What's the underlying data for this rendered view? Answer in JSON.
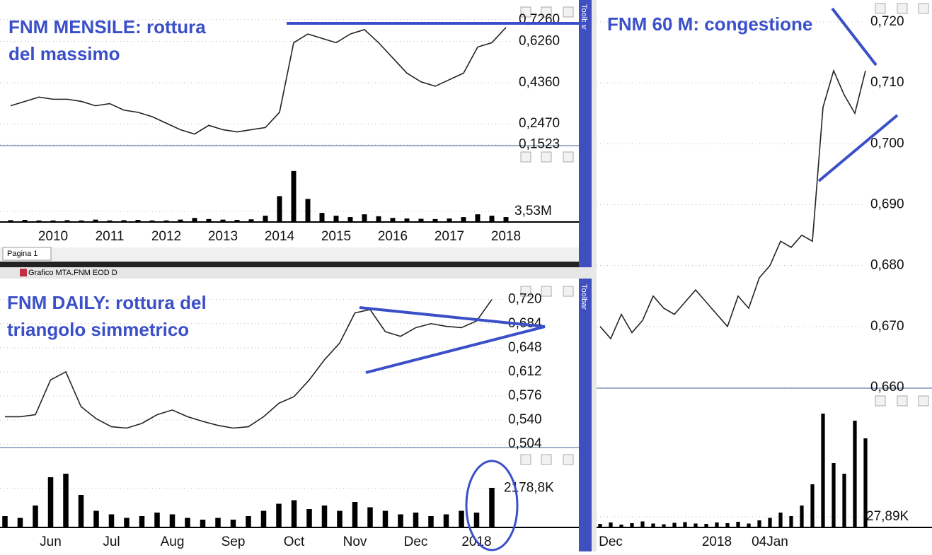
{
  "ui": {
    "tab": "Pagina 1",
    "window_title": "Grafico MTA.FNM EOD D",
    "toolbar": "Toolbar"
  },
  "chart_data": [
    {
      "type": "line",
      "title": [
        "FNM MENSILE: rottura",
        "del massimo"
      ],
      "color": "#222222",
      "categories": [
        null,
        null,
        null,
        "2010",
        null,
        null,
        null,
        "2011",
        null,
        null,
        null,
        "2012",
        null,
        null,
        null,
        "2013",
        null,
        null,
        null,
        "2014",
        null,
        null,
        null,
        "2015",
        null,
        null,
        null,
        "2016",
        null,
        null,
        null,
        "2017",
        null,
        null,
        null,
        "2018"
      ],
      "values": [
        0.33,
        0.35,
        0.37,
        0.36,
        0.36,
        0.35,
        0.33,
        0.34,
        0.31,
        0.3,
        0.28,
        0.25,
        0.22,
        0.2,
        0.24,
        0.22,
        0.21,
        0.22,
        0.23,
        0.3,
        0.62,
        0.66,
        0.64,
        0.62,
        0.66,
        0.68,
        0.62,
        0.55,
        0.48,
        0.44,
        0.42,
        0.45,
        0.48,
        0.6,
        0.62,
        0.69
      ],
      "ylim": [
        0.15,
        0.8
      ],
      "yticks": [
        {
          "value": 0.1523,
          "label": "0,1523"
        },
        {
          "value": 0.247,
          "label": "0,2470"
        },
        {
          "value": 0.436,
          "label": "0,4360"
        },
        {
          "value": 0.626,
          "label": "0,6260"
        },
        {
          "value": 0.726,
          "label": "0,7260"
        }
      ],
      "grid": true,
      "volume": {
        "type": "bar",
        "color": "#000000",
        "values": [
          400000,
          500000,
          300000,
          300000,
          400000,
          300000,
          600000,
          300000,
          400000,
          500000,
          300000,
          300000,
          600000,
          1200000,
          800000,
          600000,
          500000,
          700000,
          2000000,
          9000000,
          18000000,
          8000000,
          3000000,
          2000000,
          1500000,
          2500000,
          1800000,
          1200000,
          1000000,
          900000,
          800000,
          1000000,
          1500000,
          2500000,
          2000000,
          1500000
        ],
        "ylim": [
          0,
          21000000
        ],
        "yticks": [
          {
            "value": 3530000,
            "label": "3,53M"
          }
        ]
      }
    },
    {
      "type": "line",
      "title": [
        "FNM DAILY: rottura del",
        "triangolo simmetrico"
      ],
      "color": "#222222",
      "categories": [
        null,
        null,
        null,
        "Jun",
        null,
        null,
        null,
        "Jul",
        null,
        null,
        null,
        "Aug",
        null,
        null,
        null,
        "Sep",
        null,
        null,
        null,
        "Oct",
        null,
        null,
        null,
        "Nov",
        null,
        null,
        null,
        "Dec",
        null,
        null,
        null,
        "2018",
        null
      ],
      "values": [
        0.545,
        0.545,
        0.548,
        0.6,
        0.612,
        0.56,
        0.542,
        0.53,
        0.528,
        0.535,
        0.548,
        0.555,
        0.545,
        0.538,
        0.532,
        0.528,
        0.53,
        0.545,
        0.565,
        0.575,
        0.6,
        0.63,
        0.655,
        0.7,
        0.705,
        0.672,
        0.665,
        0.678,
        0.684,
        0.68,
        0.678,
        0.688,
        0.72
      ],
      "ylim": [
        0.5,
        0.745
      ],
      "yticks": [
        {
          "value": 0.504,
          "label": "0,504"
        },
        {
          "value": 0.54,
          "label": "0,540"
        },
        {
          "value": 0.576,
          "label": "0,576"
        },
        {
          "value": 0.612,
          "label": "0,612"
        },
        {
          "value": 0.648,
          "label": "0,648"
        },
        {
          "value": 0.684,
          "label": "0,684"
        },
        {
          "value": 0.72,
          "label": "0,720"
        }
      ],
      "grid": true,
      "volume": {
        "type": "bar",
        "color": "#000000",
        "values": [
          600000,
          500000,
          1200000,
          2800000,
          3000000,
          1800000,
          900000,
          700000,
          500000,
          600000,
          800000,
          700000,
          500000,
          400000,
          500000,
          400000,
          600000,
          900000,
          1300000,
          1500000,
          1000000,
          1200000,
          900000,
          1400000,
          1100000,
          900000,
          700000,
          800000,
          600000,
          700000,
          900000,
          800000,
          2200000
        ],
        "ylim": [
          0,
          3800000
        ],
        "yticks": [
          {
            "value": 2178800,
            "label": "2178,8K"
          }
        ]
      }
    },
    {
      "type": "line",
      "title": [
        "FNM 60 M: congestione"
      ],
      "color": "#222222",
      "categories": [
        null,
        "Dec",
        null,
        null,
        null,
        null,
        null,
        null,
        null,
        null,
        null,
        "2018",
        null,
        null,
        null,
        null,
        "04Jan",
        null,
        null,
        null,
        null,
        null,
        null,
        null,
        null,
        null
      ],
      "values": [
        0.67,
        0.668,
        0.672,
        0.669,
        0.671,
        0.675,
        0.673,
        0.672,
        0.674,
        0.676,
        0.674,
        0.672,
        0.67,
        0.675,
        0.673,
        0.678,
        0.68,
        0.684,
        0.683,
        0.685,
        0.684,
        0.706,
        0.712,
        0.708,
        0.705,
        0.712
      ],
      "ylim": [
        0.66,
        0.7236
      ],
      "yticks": [
        {
          "value": 0.66,
          "label": "0,660"
        },
        {
          "value": 0.67,
          "label": "0,670"
        },
        {
          "value": 0.68,
          "label": "0,680"
        },
        {
          "value": 0.69,
          "label": "0,690"
        },
        {
          "value": 0.7,
          "label": "0,700"
        },
        {
          "value": 0.71,
          "label": "0,710"
        },
        {
          "value": 0.72,
          "label": "0,720"
        }
      ],
      "grid": true,
      "volume": {
        "type": "bar",
        "color": "#000000",
        "values": [
          8000,
          12000,
          6000,
          10000,
          15000,
          9000,
          7000,
          11000,
          13000,
          9000,
          8000,
          12000,
          10000,
          14000,
          9000,
          18000,
          25000,
          40000,
          30000,
          60000,
          120000,
          320000,
          180000,
          150000,
          300000,
          250000
        ],
        "ylim": [
          0,
          340000
        ],
        "yticks": [
          {
            "value": 27890,
            "label": "27,89K"
          }
        ]
      }
    }
  ]
}
